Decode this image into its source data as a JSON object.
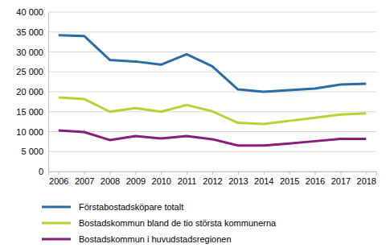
{
  "chart_data": {
    "type": "line",
    "categories": [
      "2006",
      "2007",
      "2008",
      "2009",
      "2010",
      "2011",
      "2012",
      "2013",
      "2014",
      "2015",
      "2016",
      "2017",
      "2018"
    ],
    "series": [
      {
        "name": "Förstabostadsköpare totalt",
        "color": "#2a6ea6",
        "values": [
          34200,
          34000,
          28000,
          27600,
          26800,
          29400,
          26400,
          20600,
          20000,
          20400,
          20800,
          21800,
          22000
        ]
      },
      {
        "name": "Bostadskommun bland de tio största kommunerna",
        "color": "#b5d334",
        "values": [
          18600,
          18200,
          15000,
          15900,
          15000,
          16700,
          15100,
          12200,
          11900,
          12700,
          13500,
          14300,
          14600
        ]
      },
      {
        "name": "Bostadskommun i huvudstadsregionen",
        "color": "#8c1b7e",
        "values": [
          10300,
          9900,
          7900,
          8900,
          8300,
          8900,
          8100,
          6500,
          6500,
          7000,
          7600,
          8200,
          8200
        ]
      }
    ],
    "ylim": [
      0,
      40000
    ],
    "yticks": [
      0,
      {
        "value": 5000,
        "label": "5 000"
      },
      {
        "value": 10000,
        "label": "10 000"
      },
      {
        "value": 15000,
        "label": "15 000"
      },
      {
        "value": 20000,
        "label": "20 000"
      },
      {
        "value": 25000,
        "label": "25 000"
      },
      {
        "value": 30000,
        "label": "30 000"
      },
      {
        "value": 35000,
        "label": "35 000"
      },
      {
        "value": 40000,
        "label": "40 000"
      }
    ],
    "grid": true
  }
}
